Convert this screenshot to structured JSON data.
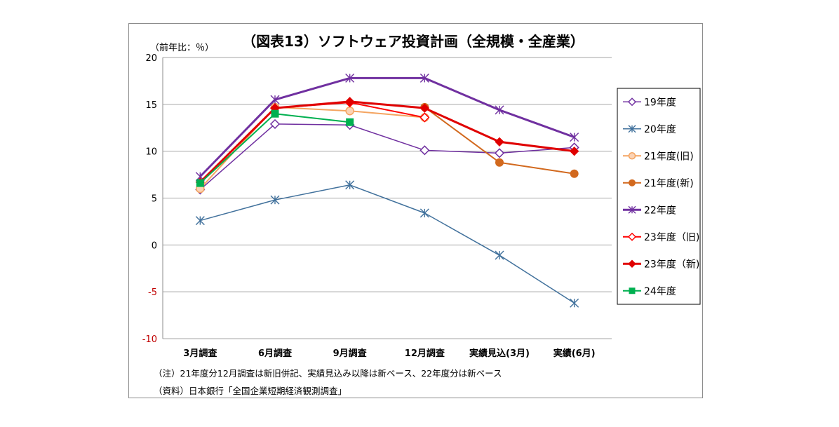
{
  "chart_data": {
    "type": "line",
    "title": "（図表13）ソフトウェア投資計画（全規模・全産業）",
    "unit_label": "（前年比：％）",
    "categories": [
      "3月調査",
      "6月調査",
      "9月調査",
      "12月調査",
      "実績見込(3月)",
      "実績(6月)"
    ],
    "ylim": [
      -10,
      20
    ],
    "yticks": [
      "20",
      "15",
      "10",
      "5",
      "0",
      "-5",
      "-10"
    ],
    "ytick_values": [
      20,
      15,
      10,
      5,
      0,
      -5,
      -10
    ],
    "negative_tick_color": "#c00000",
    "grid": true,
    "legend_position": "right",
    "series": [
      {
        "name": "19年度",
        "color": "#7030a0",
        "marker": "diamond-open",
        "width": 1.5,
        "values": [
          5.9,
          12.9,
          12.8,
          10.1,
          9.8,
          10.4
        ]
      },
      {
        "name": "20年度",
        "color": "#41719c",
        "marker": "asterisk",
        "width": 1.5,
        "values": [
          2.6,
          4.8,
          6.4,
          3.4,
          -1.1,
          -6.2
        ]
      },
      {
        "name": "21年度(旧)",
        "color": "#f4a460",
        "marker": "circle-light",
        "width": 2,
        "values": [
          6.0,
          14.7,
          14.3,
          13.6,
          null,
          null
        ]
      },
      {
        "name": "21年度(新)",
        "color": "#d2691e",
        "marker": "circle",
        "width": 2,
        "values": [
          null,
          null,
          null,
          14.7,
          8.8,
          7.6
        ]
      },
      {
        "name": "22年度",
        "color": "#7030a0",
        "marker": "asterisk",
        "width": 3,
        "values": [
          7.3,
          15.5,
          17.8,
          17.8,
          14.4,
          11.5
        ]
      },
      {
        "name": "23年度（旧)",
        "color": "#ff0000",
        "marker": "diamond-open",
        "width": 2,
        "values": [
          null,
          14.6,
          15.2,
          13.6,
          null,
          null
        ]
      },
      {
        "name": "23年度（新)",
        "color": "#e00000",
        "marker": "diamond",
        "width": 3,
        "values": [
          6.7,
          14.6,
          15.3,
          14.6,
          11.0,
          10.0
        ]
      },
      {
        "name": "24年度",
        "color": "#00b050",
        "marker": "square",
        "width": 2,
        "values": [
          6.6,
          14.0,
          13.1,
          null,
          null,
          null
        ]
      }
    ],
    "notes": [
      "（注）21年度分12月調査は新旧併記、実績見込み以降は新ベース、22年度分は新ベース",
      "（資料）日本銀行「全国企業短期経済観測調査」"
    ]
  }
}
